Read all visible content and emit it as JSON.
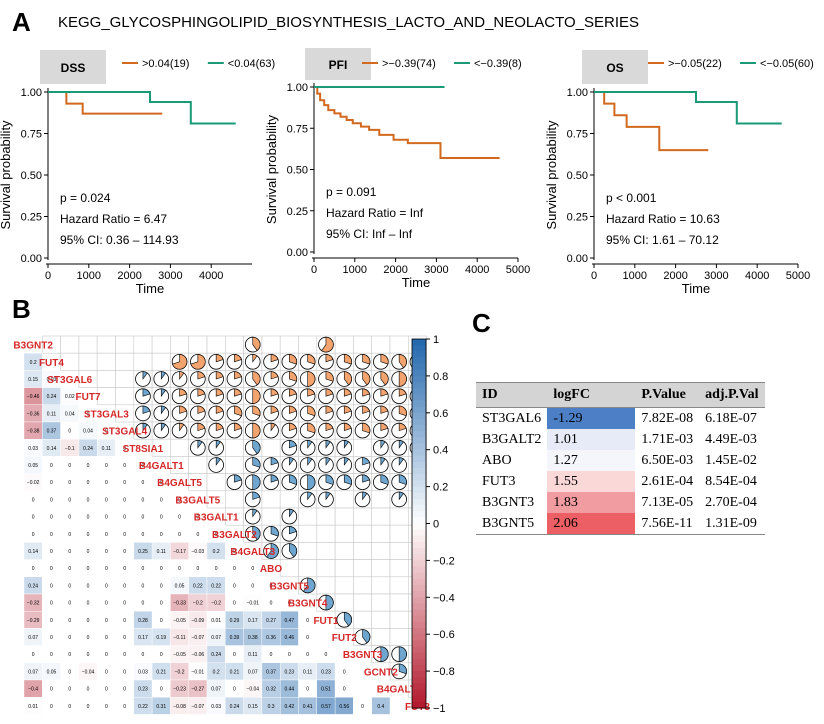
{
  "panel_a": {
    "label": "A",
    "title": "KEGG_GLYCOSPHINGOLIPID_BIOSYNTHESIS_LACTO_AND_NEOLACTO_SERIES"
  },
  "panel_b": {
    "label": "B"
  },
  "panel_c": {
    "label": "C"
  },
  "colors": {
    "high": "#d2691e",
    "low": "#1a9a77",
    "pos": "#2166ac",
    "neg": "#b2182b",
    "strip": "#d9d9d9"
  },
  "chart_data": [
    {
      "type": "line",
      "subtype": "kaplan-meier",
      "strip": "DSS",
      "legend": [
        {
          "name": ">0.04(19)",
          "color": "high"
        },
        {
          "name": "<0.04(63)",
          "color": "low"
        }
      ],
      "xlabel": "Time",
      "ylabel": "Survival probability",
      "xlim": [
        0,
        5000
      ],
      "ylim": [
        0,
        1
      ],
      "xticks": [
        0,
        1000,
        2000,
        3000,
        4000
      ],
      "yticks": [
        "0.00",
        "0.25",
        "0.50",
        "0.75",
        "1.00"
      ],
      "series": [
        {
          "name": ">0.04(19)",
          "color": "high",
          "x": [
            0,
            450,
            850,
            2800
          ],
          "y": [
            1.0,
            0.93,
            0.87,
            0.87
          ]
        },
        {
          "name": "<0.04(63)",
          "color": "low",
          "x": [
            0,
            2500,
            3500,
            4600
          ],
          "y": [
            1.0,
            0.94,
            0.81,
            0.81
          ]
        }
      ],
      "stats": [
        "p = 0.024",
        "Hazard Ratio = 6.47",
        "95% CI: 0.36 – 114.93"
      ]
    },
    {
      "type": "line",
      "subtype": "kaplan-meier",
      "strip": "PFI",
      "legend": [
        {
          "name": ">−0.39(74)",
          "color": "high"
        },
        {
          "name": "<−0.39(8)",
          "color": "low"
        }
      ],
      "xlabel": "Time",
      "ylabel": "Survival probability",
      "xlim": [
        0,
        5000
      ],
      "ylim": [
        0,
        1
      ],
      "xticks": [
        0,
        1000,
        2000,
        3000,
        4000,
        5000
      ],
      "yticks": [
        "0.00",
        "0.25",
        "0.50",
        "0.75",
        "1.00"
      ],
      "series": [
        {
          "name": ">−0.39(74)",
          "color": "high",
          "x": [
            0,
            80,
            150,
            250,
            350,
            500,
            650,
            800,
            950,
            1150,
            1350,
            1600,
            1950,
            2300,
            3100,
            4550
          ],
          "y": [
            1.0,
            0.96,
            0.92,
            0.89,
            0.86,
            0.84,
            0.82,
            0.8,
            0.78,
            0.76,
            0.74,
            0.71,
            0.68,
            0.66,
            0.57,
            0.57
          ]
        },
        {
          "name": "<−0.39(8)",
          "color": "low",
          "x": [
            0,
            3200
          ],
          "y": [
            1.0,
            1.0
          ]
        }
      ],
      "stats": [
        "p = 0.091",
        "Hazard Ratio = Inf",
        "95% CI: Inf – Inf"
      ]
    },
    {
      "type": "line",
      "subtype": "kaplan-meier",
      "strip": "OS",
      "legend": [
        {
          "name": ">−0.05(22)",
          "color": "high"
        },
        {
          "name": "<−0.05(60)",
          "color": "low"
        }
      ],
      "xlabel": "Time",
      "ylabel": "Survival probability",
      "xlim": [
        0,
        5000
      ],
      "ylim": [
        0,
        1
      ],
      "xticks": [
        0,
        1000,
        2000,
        3000,
        4000,
        5000
      ],
      "yticks": [
        "0.00",
        "0.25",
        "0.50",
        "0.75",
        "1.00"
      ],
      "series": [
        {
          "name": ">−0.05(22)",
          "color": "high",
          "x": [
            0,
            250,
            500,
            800,
            1600,
            2800
          ],
          "y": [
            1.0,
            0.93,
            0.86,
            0.79,
            0.65,
            0.65
          ]
        },
        {
          "name": "<−0.05(60)",
          "color": "low",
          "x": [
            0,
            2500,
            3500,
            4600
          ],
          "y": [
            1.0,
            0.94,
            0.81,
            0.81
          ]
        }
      ],
      "stats": [
        "p < 0.001",
        "Hazard Ratio = 10.63",
        "95% CI: 1.61 – 70.12"
      ]
    },
    {
      "type": "heatmap",
      "subtype": "correlation-matrix",
      "genes": [
        "B3GNT2",
        "FUT4",
        "ST3GAL6",
        "FUT7",
        "ST3GAL3",
        "ST3GAL4",
        "ST8SIA1",
        "B4GALT1",
        "B4GALT5",
        "B3GALT5",
        "B3GALT1",
        "B3GALT2",
        "B4GALT3",
        "ABO",
        "B3GNT5",
        "B3GNT4",
        "FUT1",
        "FUT2",
        "B3GNT3",
        "GCNT2",
        "B4GALT2",
        "FUT3"
      ],
      "colorbar": {
        "min": -1,
        "max": 1,
        "ticks": [
          "1",
          "0.8",
          "0.6",
          "0.4",
          "0.2",
          "0",
          "−0.2",
          "−0.4",
          "−0.6",
          "−0.8",
          "−1"
        ]
      },
      "lower_rows": [
        [],
        [
          "0.2"
        ],
        [
          "0.15",
          "0.03"
        ],
        [
          "−0.46",
          "0.24",
          "0.02"
        ],
        [
          "−0.36",
          "0.11",
          "0.04",
          "0"
        ],
        [
          "−0.38",
          "0.37",
          "0",
          "0.04",
          "0"
        ],
        [
          "0.03",
          "0.14",
          "−0.1",
          "0.24",
          "0.11",
          "0"
        ],
        [
          "0.05",
          "0",
          "0",
          "0",
          "0",
          "0",
          "0"
        ],
        [
          "−0.02",
          "0",
          "0",
          "0",
          "0",
          "0",
          "0",
          "0"
        ],
        [
          "0",
          "0",
          "0",
          "0",
          "0",
          "0",
          "0",
          "0",
          "0"
        ],
        [
          "0",
          "0",
          "0",
          "0",
          "0",
          "0",
          "0",
          "0",
          "0",
          "0"
        ],
        [
          "0",
          "0",
          "0",
          "0",
          "0",
          "0",
          "0",
          "0",
          "0",
          "0",
          "0"
        ],
        [
          "0.14",
          "0",
          "0",
          "0",
          "0",
          "0",
          "0.25",
          "0.11",
          "−0.17",
          "−0.03",
          "0.2",
          "0"
        ],
        [
          "0",
          "0",
          "0",
          "0",
          "0",
          "0",
          "0",
          "0",
          "0",
          "0",
          "0",
          "0",
          "0"
        ],
        [
          "0.24",
          "0",
          "0",
          "0",
          "0",
          "0",
          "0",
          "0",
          "0.05",
          "0.22",
          "0.22",
          "0",
          "0",
          "0"
        ],
        [
          "−0.32",
          "0",
          "0",
          "0",
          "0",
          "0",
          "0",
          "0",
          "−0.33",
          "−0.2",
          "−0.2",
          "0",
          "−0.01",
          "0",
          "0"
        ],
        [
          "−0.29",
          "0",
          "0",
          "0",
          "0",
          "0",
          "0.28",
          "0",
          "−0.05",
          "−0.09",
          "0.01",
          "0.29",
          "0.17",
          "0.27",
          "0.47",
          "0"
        ],
        [
          "0.07",
          "0",
          "0",
          "0",
          "0",
          "0",
          "0.17",
          "0.19",
          "−0.11",
          "−0.07",
          "0.07",
          "0.39",
          "0.38",
          "0.36",
          "0.46",
          "0"
        ],
        [
          "0",
          "0",
          "0",
          "0",
          "0",
          "0",
          "0",
          "0",
          "−0.05",
          "−0.06",
          "0.24",
          "0",
          "0.11",
          "0",
          "0",
          "0",
          "0"
        ],
        [
          "0.07",
          "0.05",
          "0",
          "−0.04",
          "0",
          "0",
          "0.03",
          "0.21",
          "−0.2",
          "−0.01",
          "0.2",
          "0.21",
          "0.07",
          "0.37",
          "0.23",
          "0.11",
          "0.23",
          "0"
        ],
        [
          "−0.4",
          "0",
          "0",
          "0",
          "0",
          "0",
          "0.23",
          "0",
          "−0.23",
          "−0.27",
          "0.07",
          "0",
          "−0.04",
          "0.32",
          "0.44",
          "0",
          "0.51",
          "0"
        ],
        [
          "0.01",
          "0",
          "0",
          "0",
          "0",
          "0",
          "0.22",
          "0.31",
          "−0.08",
          "−0.07",
          "0.03",
          "0.24",
          "0.15",
          "0.3",
          "0.42",
          "0.41",
          "0.57",
          "0.56",
          "0",
          "0.4"
        ]
      ],
      "upper_cells": [
        [
          0,
          12,
          "0.4"
        ],
        [
          0,
          16,
          "0.6"
        ],
        [
          1,
          8,
          "0.7"
        ],
        [
          1,
          9,
          "0.7"
        ],
        [
          1,
          10,
          "0.2"
        ],
        [
          1,
          11,
          "0.2"
        ],
        [
          1,
          12,
          "0.1"
        ],
        [
          1,
          13,
          "0.2"
        ],
        [
          1,
          14,
          "0.3"
        ],
        [
          1,
          15,
          "0.3"
        ],
        [
          1,
          16,
          "0.2"
        ],
        [
          1,
          17,
          "0.3"
        ],
        [
          1,
          18,
          "0.3"
        ],
        [
          1,
          19,
          "0.3"
        ],
        [
          1,
          20,
          "0.4"
        ],
        [
          1,
          21,
          "0.4"
        ],
        [
          2,
          6,
          "0.1"
        ],
        [
          2,
          7,
          "0.1"
        ],
        [
          2,
          8,
          "0.1"
        ],
        [
          2,
          9,
          "0.2"
        ],
        [
          2,
          10,
          "0.2"
        ],
        [
          2,
          11,
          "0.2"
        ],
        [
          2,
          12,
          "0.4"
        ],
        [
          2,
          13,
          "0.2"
        ],
        [
          2,
          14,
          "0.3"
        ],
        [
          2,
          15,
          "0.5"
        ],
        [
          2,
          16,
          "0.3"
        ],
        [
          2,
          17,
          "0.4"
        ],
        [
          2,
          18,
          "0.4"
        ],
        [
          2,
          19,
          "0.4"
        ],
        [
          2,
          20,
          "0.5"
        ],
        [
          2,
          21,
          "0.5"
        ],
        [
          3,
          6,
          "0.2"
        ],
        [
          3,
          7,
          "0.1"
        ],
        [
          3,
          8,
          "0.2"
        ],
        [
          3,
          9,
          "0.2"
        ],
        [
          3,
          10,
          "0.2"
        ],
        [
          3,
          11,
          "0.2"
        ],
        [
          3,
          12,
          "0.5"
        ],
        [
          3,
          13,
          "0.2"
        ],
        [
          3,
          14,
          "0.2"
        ],
        [
          3,
          15,
          "0.2"
        ],
        [
          3,
          16,
          "0.2"
        ],
        [
          3,
          17,
          "0.2"
        ],
        [
          3,
          18,
          "0.2"
        ],
        [
          3,
          19,
          "0.2"
        ],
        [
          3,
          20,
          "0.2"
        ],
        [
          3,
          21,
          "0.2"
        ],
        [
          4,
          6,
          "0.2"
        ],
        [
          4,
          7,
          "0.1"
        ],
        [
          4,
          8,
          "0.2"
        ],
        [
          4,
          9,
          "0.2"
        ],
        [
          4,
          10,
          "0.2"
        ],
        [
          4,
          11,
          "0.3"
        ],
        [
          4,
          12,
          "0.3"
        ],
        [
          4,
          13,
          "0.2"
        ],
        [
          4,
          14,
          "0.2"
        ],
        [
          4,
          15,
          "0.3"
        ],
        [
          4,
          16,
          "0.2"
        ],
        [
          4,
          17,
          "0.2"
        ],
        [
          4,
          18,
          "0.2"
        ],
        [
          4,
          19,
          "0.2"
        ],
        [
          4,
          20,
          "0.3"
        ],
        [
          4,
          21,
          "0.2"
        ],
        [
          5,
          6,
          "0.1"
        ],
        [
          5,
          7,
          "0.1"
        ],
        [
          5,
          8,
          "0.1"
        ],
        [
          5,
          9,
          "0.2"
        ],
        [
          5,
          10,
          "0.2"
        ],
        [
          5,
          11,
          "0.2"
        ],
        [
          5,
          12,
          "0.5"
        ],
        [
          5,
          13,
          "0.1"
        ],
        [
          5,
          14,
          "0.2"
        ],
        [
          5,
          15,
          "0.3"
        ],
        [
          5,
          16,
          "0.2"
        ],
        [
          5,
          17,
          "0.2"
        ],
        [
          5,
          18,
          "0.3"
        ],
        [
          5,
          19,
          "0.2"
        ],
        [
          5,
          20,
          "0.2"
        ],
        [
          5,
          21,
          "0.2"
        ],
        [
          6,
          9,
          "0.1"
        ],
        [
          6,
          10,
          "0.1"
        ],
        [
          6,
          12,
          "0.4"
        ],
        [
          6,
          14,
          "0.2"
        ],
        [
          6,
          15,
          "0.1"
        ],
        [
          6,
          16,
          "0.1"
        ],
        [
          6,
          17,
          "0.1"
        ],
        [
          6,
          19,
          "0.1"
        ],
        [
          6,
          20,
          "0.1"
        ],
        [
          6,
          21,
          "0.1"
        ],
        [
          7,
          10,
          "0.1"
        ],
        [
          7,
          12,
          "0.3"
        ],
        [
          7,
          13,
          "0.2"
        ],
        [
          7,
          14,
          "0.1"
        ],
        [
          7,
          15,
          "0.1"
        ],
        [
          7,
          16,
          "0.1"
        ],
        [
          7,
          17,
          "0.1"
        ],
        [
          7,
          18,
          "0.2"
        ],
        [
          7,
          19,
          "0.1"
        ],
        [
          7,
          20,
          "0.1"
        ],
        [
          8,
          11,
          "0.2"
        ],
        [
          8,
          12,
          "0.5"
        ],
        [
          8,
          13,
          "0.2"
        ],
        [
          8,
          14,
          "0.3"
        ],
        [
          8,
          15,
          "0.5"
        ],
        [
          8,
          16,
          "0.3"
        ],
        [
          8,
          17,
          "0.3"
        ],
        [
          8,
          18,
          "0.2"
        ],
        [
          8,
          19,
          "0.3"
        ],
        [
          8,
          20,
          "0.3"
        ],
        [
          9,
          12,
          "0.2"
        ],
        [
          9,
          15,
          "0.1"
        ],
        [
          9,
          16,
          "0.1"
        ],
        [
          9,
          18,
          "0.1"
        ],
        [
          9,
          20,
          "0.1"
        ],
        [
          10,
          12,
          "0.1"
        ],
        [
          10,
          14,
          "0.1"
        ],
        [
          11,
          12,
          "0.4"
        ],
        [
          11,
          13,
          "0.3"
        ],
        [
          11,
          14,
          "0.2"
        ],
        [
          12,
          13,
          "0.6"
        ],
        [
          12,
          14,
          "0.4"
        ],
        [
          14,
          15,
          "0.6"
        ],
        [
          15,
          16,
          "0.5"
        ],
        [
          16,
          17,
          "0.4"
        ],
        [
          17,
          18,
          "0.4"
        ],
        [
          18,
          19,
          "0.5"
        ],
        [
          18,
          20,
          "0.5"
        ],
        [
          19,
          20,
          "0.3"
        ]
      ]
    },
    {
      "type": "table",
      "columns": [
        "ID",
        "logFC",
        "P.Value",
        "adj.P.Val"
      ],
      "rows": [
        [
          "ST3GAL6",
          "-1.29",
          "7.82E-08",
          "6.18E-07"
        ],
        [
          "B3GALT2",
          "1.01",
          "1.71E-03",
          "4.49E-03"
        ],
        [
          "ABO",
          "1.27",
          "6.50E-03",
          "1.45E-02"
        ],
        [
          "FUT3",
          "1.55",
          "2.61E-04",
          "8.54E-04"
        ],
        [
          "B3GNT3",
          "1.83",
          "7.13E-05",
          "2.70E-04"
        ],
        [
          "B3GNT5",
          "2.06",
          "7.56E-11",
          "1.31E-09"
        ]
      ],
      "logfc_colors": [
        "#4d7fc6",
        "#e6ebf7",
        "#f5f6fb",
        "#fad8d8",
        "#f19ca0",
        "#ec5f64"
      ]
    }
  ]
}
